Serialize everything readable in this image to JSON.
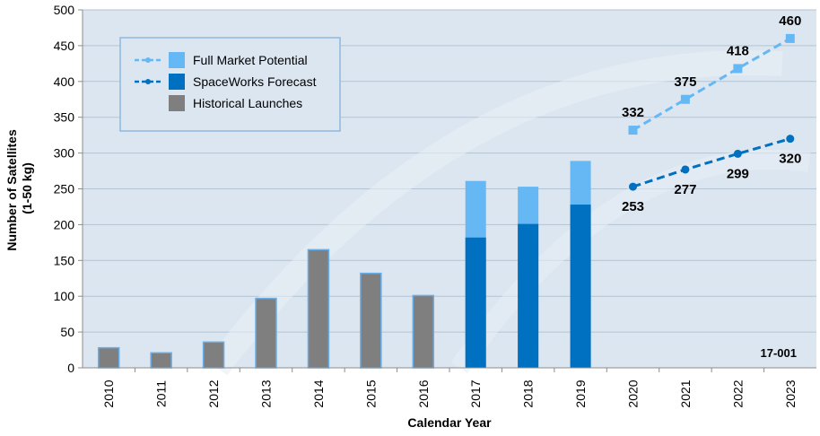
{
  "chart_data": {
    "type": "bar",
    "title": "",
    "xlabel": "Calendar Year",
    "ylabel": [
      "Number of Satellites",
      "(1-50 kg)"
    ],
    "ylim": [
      0,
      500
    ],
    "yticks": [
      0,
      50,
      100,
      150,
      200,
      250,
      300,
      350,
      400,
      450,
      500
    ],
    "grid": true,
    "legend_position": "top-left",
    "categories": [
      "2010",
      "2011",
      "2012",
      "2013",
      "2014",
      "2015",
      "2016",
      "2017",
      "2018",
      "2019",
      "2020",
      "2021",
      "2022",
      "2023"
    ],
    "series": [
      {
        "name": "Historical Launches",
        "kind": "bar",
        "color": "#7f7f7f",
        "values": [
          28,
          21,
          36,
          97,
          165,
          132,
          101,
          null,
          null,
          null,
          null,
          null,
          null,
          null
        ]
      },
      {
        "name": "SpaceWorks Forecast",
        "kind": "bar",
        "color": "#0070c0",
        "values": [
          null,
          null,
          null,
          null,
          null,
          null,
          null,
          182,
          201,
          228,
          null,
          null,
          null,
          null
        ]
      },
      {
        "name": "Full Market Potential",
        "kind": "bar",
        "color": "#66b8f5",
        "values": [
          null,
          null,
          null,
          null,
          null,
          null,
          null,
          261,
          253,
          289,
          null,
          null,
          null,
          null
        ]
      },
      {
        "name": "Full Market Potential",
        "kind": "line",
        "style": "dashed",
        "color": "#66b8f5",
        "marker": "square",
        "x": [
          "2020",
          "2021",
          "2022",
          "2023"
        ],
        "values": [
          332,
          375,
          418,
          460
        ],
        "labels": [
          "332",
          "375",
          "418",
          "460"
        ]
      },
      {
        "name": "SpaceWorks Forecast",
        "kind": "line",
        "style": "dashed",
        "color": "#0070c0",
        "marker": "circle",
        "x": [
          "2020",
          "2021",
          "2022",
          "2023"
        ],
        "values": [
          253,
          277,
          299,
          320
        ],
        "labels": [
          "253",
          "277",
          "299",
          "320"
        ]
      }
    ],
    "legend": [
      {
        "label": "Full Market Potential",
        "line_color": "#66b8f5",
        "swatch_color": "#66b8f5"
      },
      {
        "label": "SpaceWorks Forecast",
        "line_color": "#0070c0",
        "swatch_color": "#0070c0"
      },
      {
        "label": "Historical Launches",
        "line_color": null,
        "swatch_color": "#7f7f7f"
      }
    ],
    "annotation": "17-001",
    "plot_background": "#dce6f0"
  }
}
